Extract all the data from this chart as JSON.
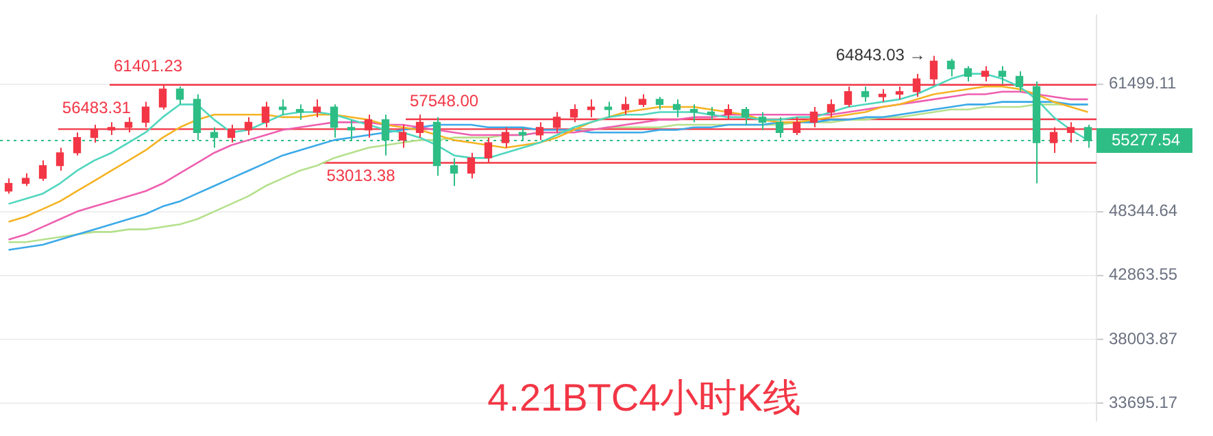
{
  "chart_data": {
    "type": "candlestick",
    "title": "4.21BTC4小时K线",
    "categories": [
      null,
      null,
      null,
      null,
      null,
      null,
      null,
      null,
      null,
      null,
      null,
      null,
      null,
      null,
      null,
      null,
      null,
      null,
      null,
      null,
      null,
      null,
      null,
      null,
      null,
      null,
      null,
      null,
      null,
      null,
      null,
      null,
      null,
      null,
      null,
      null,
      null,
      null,
      null,
      null,
      null,
      null,
      null,
      null,
      null,
      null,
      null,
      null,
      null,
      null,
      null,
      null,
      null,
      null,
      null,
      null,
      null,
      null,
      null,
      null,
      null,
      null,
      null,
      null
    ],
    "ohlc": [
      [
        50260,
        51481,
        50019,
        50989
      ],
      [
        50989,
        51978,
        50745,
        51481
      ],
      [
        51481,
        53242,
        51235,
        52733
      ],
      [
        52733,
        54536,
        52229,
        54015
      ],
      [
        54015,
        56131,
        53756,
        55594
      ],
      [
        55594,
        56946,
        55063,
        56402
      ],
      [
        56402,
        57220,
        55862,
        56673
      ],
      [
        56673,
        57773,
        56131,
        57220
      ],
      [
        57220,
        59463,
        56673,
        58894
      ],
      [
        58894,
        61401.23,
        58612,
        60909
      ],
      [
        60909,
        61203,
        59178,
        59749
      ],
      [
        59749,
        60327,
        55328,
        56131
      ],
      [
        56131,
        56673,
        54536,
        55594
      ],
      [
        55594,
        56946,
        55063,
        56402
      ],
      [
        56402,
        57773,
        55862,
        57220
      ],
      [
        57220,
        59463,
        56673,
        58894
      ],
      [
        58894,
        59749,
        58051,
        58612
      ],
      [
        58612,
        59178,
        57496,
        58331
      ],
      [
        58331,
        59749,
        57773,
        58894
      ],
      [
        58894,
        59178,
        55594,
        56673
      ],
      [
        56673,
        57496,
        55328,
        56402
      ],
      [
        56402,
        58051,
        55594,
        57496
      ],
      [
        57496,
        58051,
        53756,
        55328
      ],
      [
        55328,
        56946,
        54536,
        56131
      ],
      [
        56131,
        58051,
        55594,
        57220
      ],
      [
        57220,
        57773,
        51729,
        52733
      ],
      [
        52733,
        53498,
        50745,
        51978
      ],
      [
        51978,
        54015,
        51481,
        53498
      ],
      [
        53498,
        55594,
        52987,
        55063
      ],
      [
        55063,
        56673,
        54536,
        56131
      ],
      [
        56131,
        56673,
        55328,
        55862
      ],
      [
        55862,
        57220,
        55328,
        56673
      ],
      [
        56673,
        58331,
        56131,
        57773
      ],
      [
        57773,
        59178,
        57220,
        58612
      ],
      [
        58612,
        59749,
        57773,
        58894
      ],
      [
        58894,
        59463,
        57773,
        58612
      ],
      [
        58612,
        60037,
        58051,
        59178
      ],
      [
        59178,
        60327,
        58894,
        59749
      ],
      [
        59749,
        60037,
        58612,
        59178
      ],
      [
        59178,
        59749,
        57773,
        58612
      ],
      [
        58612,
        59178,
        57220,
        58331
      ],
      [
        58331,
        58894,
        57496,
        58051
      ],
      [
        58051,
        59178,
        57496,
        58612
      ],
      [
        58612,
        58894,
        56946,
        57773
      ],
      [
        57773,
        58331,
        56402,
        57220
      ],
      [
        57220,
        57773,
        55594,
        56131
      ],
      [
        56131,
        57773,
        55862,
        57220
      ],
      [
        57220,
        58894,
        56673,
        58331
      ],
      [
        58331,
        59749,
        57773,
        59178
      ],
      [
        59178,
        61203,
        58894,
        60617
      ],
      [
        60617,
        61203,
        59463,
        60037
      ],
      [
        60037,
        60909,
        59463,
        60327
      ],
      [
        60327,
        61203,
        59749,
        60617
      ],
      [
        60617,
        62695,
        60037,
        62094
      ],
      [
        62094,
        64843.03,
        61499,
        64222
      ],
      [
        64222,
        64500,
        62393,
        63300
      ],
      [
        63300,
        63607,
        61796,
        62393
      ],
      [
        62393,
        63607,
        61796,
        62997
      ],
      [
        62997,
        63607,
        61499,
        62393
      ],
      [
        62393,
        62997,
        60617,
        61203
      ],
      [
        61203,
        61796,
        50989,
        55063
      ],
      [
        55063,
        56673,
        54015,
        56131
      ],
      [
        56131,
        57220,
        55063,
        56673
      ],
      [
        56673,
        56946,
        54536,
        55277.54
      ]
    ],
    "colors": [
      "#f23645",
      "#f23645",
      "#f23645",
      "#f23645",
      "#f23645",
      "#f23645",
      "#f23645",
      "#f23645",
      "#f23645",
      "#f23645",
      "#2ebd85",
      "#2ebd85",
      "#2ebd85",
      "#f23645",
      "#f23645",
      "#f23645",
      "#2ebd85",
      "#2ebd85",
      "#f23645",
      "#2ebd85",
      "#2ebd85",
      "#f23645",
      "#2ebd85",
      "#f23645",
      "#f23645",
      "#2ebd85",
      "#2ebd85",
      "#f23645",
      "#f23645",
      "#f23645",
      "#2ebd85",
      "#f23645",
      "#f23645",
      "#f23645",
      "#f23645",
      "#2ebd85",
      "#f23645",
      "#f23645",
      "#2ebd85",
      "#2ebd85",
      "#2ebd85",
      "#2ebd85",
      "#f23645",
      "#2ebd85",
      "#2ebd85",
      "#2ebd85",
      "#f23645",
      "#f23645",
      "#f23645",
      "#f23645",
      "#2ebd85",
      "#f23645",
      "#f23645",
      "#f23645",
      "#f23645",
      "#2ebd85",
      "#2ebd85",
      "#f23645",
      "#2ebd85",
      "#2ebd85",
      "#2ebd85",
      "#f23645",
      "#f23645",
      "#2ebd85"
    ],
    "series": [
      {
        "type": "line",
        "color": "#4fd6be",
        "values": [
          49061,
          49537,
          50019,
          50989,
          52229,
          53242,
          54015,
          55063,
          56131,
          57773,
          59178,
          59178,
          57496,
          56131,
          56402,
          57220,
          58051,
          58331,
          58331,
          58051,
          57496,
          56946,
          56402,
          56131,
          55594,
          54799,
          53756,
          53498,
          53498,
          54015,
          54536,
          55063,
          55862,
          56673,
          57220,
          57773,
          58051,
          58051,
          58331,
          58331,
          58331,
          58051,
          57773,
          57773,
          57496,
          57496,
          57773,
          57773,
          58331,
          58894,
          59178,
          59463,
          59749,
          60327,
          61203,
          62094,
          62695,
          62695,
          62094,
          61203,
          59749,
          57773,
          56402,
          55328
        ]
      },
      {
        "type": "line",
        "color": "#f5b323",
        "values": [
          47434,
          47893,
          48590,
          49298,
          50260,
          51235,
          52229,
          53242,
          54275,
          55594,
          56673,
          57496,
          58051,
          58051,
          58051,
          58051,
          57773,
          57773,
          58051,
          58051,
          57773,
          57496,
          56946,
          56673,
          56402,
          55862,
          55328,
          55063,
          54799,
          54536,
          54799,
          55063,
          55594,
          56402,
          57220,
          57773,
          58331,
          58612,
          58894,
          58894,
          58894,
          58612,
          58331,
          58051,
          57496,
          57220,
          57220,
          57496,
          57773,
          58051,
          58331,
          58894,
          59178,
          59749,
          60327,
          60617,
          60909,
          61203,
          61203,
          60909,
          60327,
          59463,
          58894,
          58331
        ]
      },
      {
        "type": "line",
        "color": "#ee5fb0",
        "values": [
          45862,
          46306,
          46979,
          47663,
          48356,
          48825,
          49298,
          49777,
          50260,
          50989,
          51978,
          52987,
          54015,
          54799,
          55328,
          55862,
          56402,
          56673,
          56946,
          57220,
          57220,
          57220,
          56946,
          56946,
          56673,
          56402,
          56131,
          55862,
          55862,
          55862,
          55862,
          56131,
          56131,
          56131,
          56402,
          56673,
          56946,
          57220,
          57496,
          57496,
          57773,
          57773,
          58051,
          58051,
          58051,
          58051,
          58051,
          58051,
          58051,
          58331,
          58612,
          58894,
          59178,
          59463,
          59749,
          60037,
          60327,
          60327,
          60617,
          60617,
          60327,
          60037,
          59749,
          59749
        ]
      },
      {
        "type": "line",
        "color": "#3ba9e8",
        "values": [
          44987,
          45204,
          45422,
          45862,
          46306,
          46754,
          47206,
          47663,
          48124,
          48825,
          49298,
          50019,
          50745,
          51481,
          52229,
          52987,
          53756,
          54275,
          54799,
          55328,
          55594,
          55862,
          56131,
          56402,
          56673,
          56946,
          56946,
          56946,
          56673,
          56673,
          56673,
          56402,
          56402,
          56402,
          56131,
          56131,
          56131,
          56131,
          56402,
          56402,
          56673,
          56673,
          56946,
          56946,
          56946,
          57220,
          57220,
          57220,
          57496,
          57496,
          57773,
          57773,
          58051,
          58331,
          58612,
          58894,
          59178,
          59178,
          59463,
          59463,
          59463,
          59463,
          59178,
          59178
        ]
      },
      {
        "type": "line",
        "color": "#b5e08c",
        "values": [
          45641,
          45641,
          45862,
          46083,
          46306,
          46529,
          46529,
          46754,
          46754,
          46979,
          47206,
          47663,
          48356,
          49061,
          49777,
          50745,
          51481,
          52229,
          52733,
          53498,
          54015,
          54536,
          54799,
          55063,
          55328,
          55328,
          55594,
          55594,
          55594,
          55862,
          55862,
          56131,
          56131,
          56402,
          56402,
          56673,
          56673,
          56673,
          56673,
          56946,
          56946,
          56946,
          56946,
          56946,
          56946,
          56946,
          57220,
          57220,
          57220,
          57496,
          57496,
          57773,
          57773,
          58051,
          58331,
          58612,
          58612,
          58894,
          58894,
          58894,
          59178,
          59178,
          59178,
          59178
        ]
      }
    ],
    "log": true,
    "ylim": [
      32600,
      70000
    ],
    "yticks": [
      61499.11,
      48344.64,
      42863.55,
      38003.87,
      33695.17
    ],
    "grid": "y",
    "legend": false,
    "ref_lines": [
      {
        "axis": "y",
        "value": 61401.23,
        "label": "61401.23",
        "color": "#f23645"
      },
      {
        "axis": "y",
        "value": 57548.0,
        "label": "57548.00",
        "color": "#f23645"
      },
      {
        "axis": "y",
        "value": 56483.31,
        "label": "56483.31",
        "color": "#f23645"
      },
      {
        "axis": "y",
        "value": 53013.38,
        "label": "53013.38",
        "color": "#f23645"
      },
      {
        "axis": "y",
        "value": 55277.54,
        "label": "55277.54",
        "color": "#2ebd85",
        "line_style": "dotted"
      }
    ],
    "annotations": [
      "64843.03 →"
    ]
  }
}
